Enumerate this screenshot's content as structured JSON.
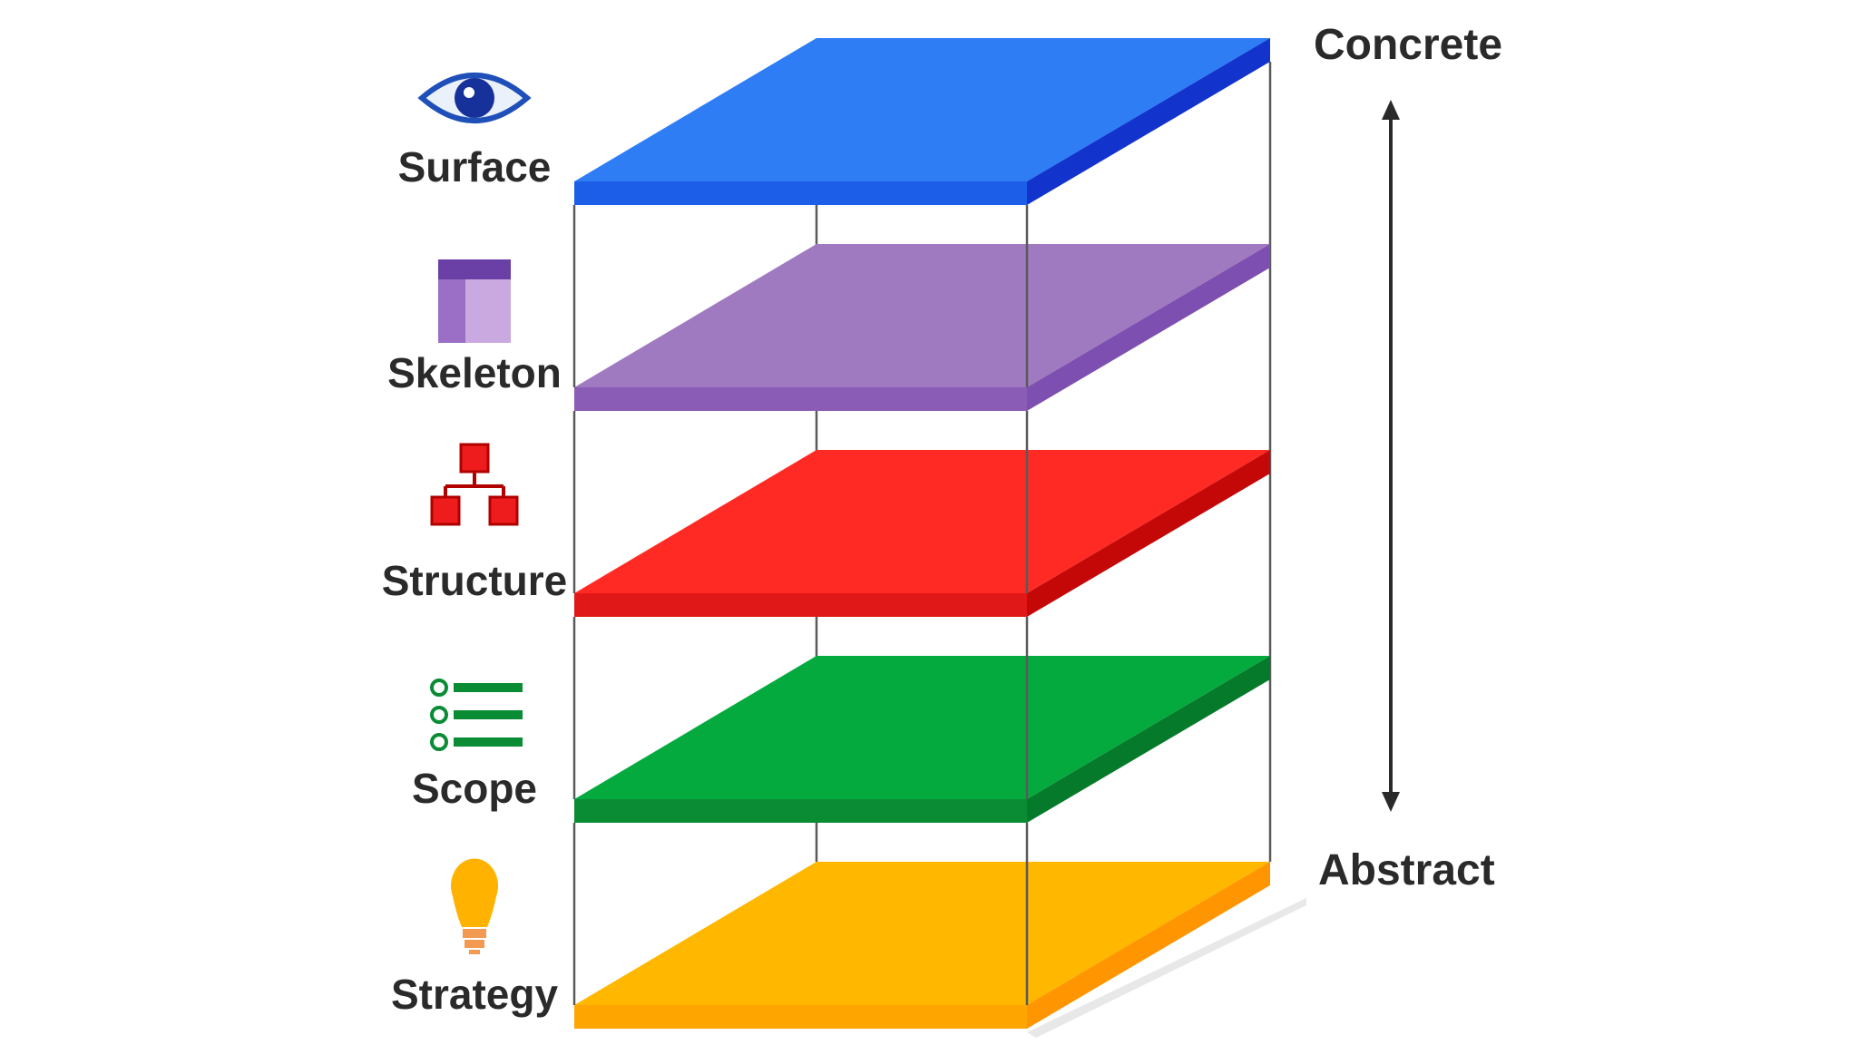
{
  "diagram": {
    "layers": [
      {
        "id": "surface",
        "label": "Surface",
        "icon": "eye-icon",
        "top_color": "#2e7df5",
        "front_color": "#1d5ee8",
        "side_color": "#1233cc"
      },
      {
        "id": "skeleton",
        "label": "Skeleton",
        "icon": "wireframe-icon",
        "top_color": "#a07ac0",
        "front_color": "#8a5cb5",
        "side_color": "#7d4fb0"
      },
      {
        "id": "structure",
        "label": "Structure",
        "icon": "hierarchy-icon",
        "top_color": "#ff2a24",
        "front_color": "#e01818",
        "side_color": "#c40808"
      },
      {
        "id": "scope",
        "label": "Scope",
        "icon": "checklist-icon",
        "top_color": "#05aa3f",
        "front_color": "#0a8c34",
        "side_color": "#067a2b"
      },
      {
        "id": "strategy",
        "label": "Strategy",
        "icon": "lightbulb-icon",
        "top_color": "#ffb700",
        "front_color": "#ffa500",
        "side_color": "#ff9500"
      }
    ],
    "axis": {
      "top_label": "Concrete",
      "bottom_label": "Abstract"
    }
  }
}
